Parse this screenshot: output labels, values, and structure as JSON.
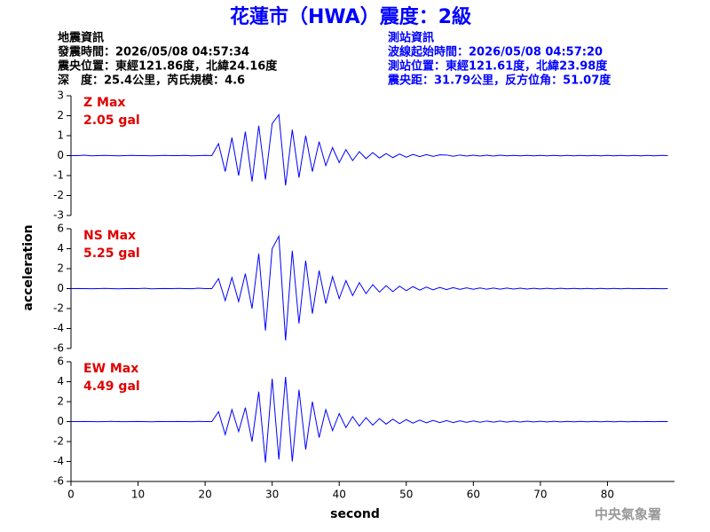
{
  "header": {
    "title": "花蓮市（HWA）震度：2級",
    "left": [
      "地震資訊",
      "發震時間：2026/05/08 04:57:34",
      "震央位置：東經121.86度，北緯24.16度",
      "深　度：25.4公里，芮氏規模：4.6"
    ],
    "right": [
      "測站資訊",
      "波線起始時間：2026/05/08 04:57:20",
      "測站位置：東經121.61度，北緯23.98度",
      "震央距：31.79公里，反方位角：51.07度"
    ]
  },
  "ylabel": "acceleration",
  "footer_mark": "中央氣象署",
  "chart_data": [
    {
      "type": "line",
      "color": "#0000ff",
      "annotations": [
        "Z Max",
        "2.05 gal"
      ],
      "xlim": [
        0,
        90
      ],
      "ylim": [
        -3,
        3
      ],
      "yticks": [
        -3,
        -2,
        -1,
        0,
        1,
        2,
        3
      ],
      "x": [
        0,
        1,
        2,
        3,
        4,
        5,
        6,
        7,
        8,
        9,
        10,
        11,
        12,
        13,
        14,
        15,
        16,
        17,
        18,
        19,
        20,
        21,
        22,
        23,
        24,
        25,
        26,
        27,
        28,
        29,
        30,
        31,
        32,
        33,
        34,
        35,
        36,
        37,
        38,
        39,
        40,
        41,
        42,
        43,
        44,
        45,
        46,
        47,
        48,
        49,
        50,
        51,
        52,
        53,
        54,
        55,
        56,
        57,
        58,
        59,
        60,
        61,
        62,
        63,
        64,
        65,
        66,
        67,
        68,
        69,
        70,
        71,
        72,
        73,
        74,
        75,
        76,
        77,
        78,
        79,
        80,
        81,
        82,
        83,
        84,
        85,
        86,
        87,
        88,
        89
      ],
      "values": [
        0,
        0,
        0.02,
        -0.01,
        0,
        0.01,
        0,
        -0.01,
        0,
        0.01,
        0,
        0,
        -0.01,
        0,
        0.01,
        0,
        0,
        0.01,
        -0.01,
        0,
        0.01,
        0,
        0.6,
        -0.8,
        0.9,
        -1.0,
        1.2,
        -1.3,
        1.5,
        -1.2,
        1.6,
        2.05,
        -1.5,
        1.3,
        -1.1,
        1.0,
        -0.8,
        0.7,
        -0.5,
        0.4,
        -0.35,
        0.3,
        -0.25,
        0.2,
        -0.15,
        0.15,
        -0.12,
        0.1,
        -0.1,
        0.08,
        -0.08,
        0.06,
        -0.05,
        0.05,
        -0.04,
        0.04,
        0.03,
        -0.03,
        0.03,
        -0.02,
        0.02,
        -0.02,
        0.02,
        -0.02,
        0.02,
        -0.01,
        0.01,
        -0.01,
        0.01,
        -0.01,
        0.01,
        -0.01,
        0.01,
        -0.01,
        0.01,
        -0.01,
        0.01,
        -0.01,
        0.01,
        -0.01,
        0.01,
        -0.01,
        0.01,
        -0.01,
        0.01,
        -0.01,
        0.01,
        -0.01,
        0.01,
        0
      ]
    },
    {
      "type": "line",
      "color": "#0000ff",
      "annotations": [
        "NS Max",
        "5.25 gal"
      ],
      "xlim": [
        0,
        90
      ],
      "ylim": [
        -6,
        6
      ],
      "yticks": [
        -6,
        -4,
        -2,
        0,
        2,
        4,
        6
      ],
      "x": [
        0,
        1,
        2,
        3,
        4,
        5,
        6,
        7,
        8,
        9,
        10,
        11,
        12,
        13,
        14,
        15,
        16,
        17,
        18,
        19,
        20,
        21,
        22,
        23,
        24,
        25,
        26,
        27,
        28,
        29,
        30,
        31,
        32,
        33,
        34,
        35,
        36,
        37,
        38,
        39,
        40,
        41,
        42,
        43,
        44,
        45,
        46,
        47,
        48,
        49,
        50,
        51,
        52,
        53,
        54,
        55,
        56,
        57,
        58,
        59,
        60,
        61,
        62,
        63,
        64,
        65,
        66,
        67,
        68,
        69,
        70,
        71,
        72,
        73,
        74,
        75,
        76,
        77,
        78,
        79,
        80,
        81,
        82,
        83,
        84,
        85,
        86,
        87,
        88,
        89
      ],
      "values": [
        0,
        0.01,
        0,
        -0.01,
        0,
        0.02,
        0,
        -0.02,
        0,
        0.01,
        0,
        0.03,
        -0.02,
        0,
        0.01,
        0,
        0.02,
        0,
        -0.01,
        0.05,
        0,
        0,
        1.0,
        -1.2,
        1.1,
        -1.3,
        1.5,
        -2.0,
        3.5,
        -4.2,
        4.0,
        5.25,
        -5.2,
        3.8,
        -3.5,
        2.8,
        -2.5,
        1.8,
        -1.5,
        1.2,
        -1.0,
        0.8,
        -0.7,
        0.6,
        -0.5,
        0.4,
        -0.35,
        0.3,
        -0.3,
        0.25,
        -0.2,
        0.2,
        -0.15,
        0.15,
        -0.12,
        0.12,
        -0.1,
        0.1,
        -0.08,
        0.08,
        -0.07,
        0.06,
        -0.06,
        0.05,
        -0.05,
        0.05,
        -0.04,
        0.04,
        -0.04,
        0.03,
        -0.03,
        0.03,
        -0.03,
        0.03,
        -0.02,
        0.02,
        -0.02,
        0.02,
        -0.02,
        0.02,
        -0.02,
        0.02,
        -0.02,
        0.02,
        -0.01,
        0.01,
        -0.01,
        0.01,
        -0.01,
        0
      ]
    },
    {
      "type": "line",
      "color": "#0000ff",
      "annotations": [
        "EW Max",
        "4.49 gal"
      ],
      "xlim": [
        0,
        90
      ],
      "ylim": [
        -6,
        6
      ],
      "yticks": [
        -6,
        -4,
        -2,
        0,
        2,
        4,
        6
      ],
      "xticks": [
        0,
        10,
        20,
        30,
        40,
        50,
        60,
        70,
        80
      ],
      "xlabel": "second",
      "x": [
        0,
        1,
        2,
        3,
        4,
        5,
        6,
        7,
        8,
        9,
        10,
        11,
        12,
        13,
        14,
        15,
        16,
        17,
        18,
        19,
        20,
        21,
        22,
        23,
        24,
        25,
        26,
        27,
        28,
        29,
        30,
        31,
        32,
        33,
        34,
        35,
        36,
        37,
        38,
        39,
        40,
        41,
        42,
        43,
        44,
        45,
        46,
        47,
        48,
        49,
        50,
        51,
        52,
        53,
        54,
        55,
        56,
        57,
        58,
        59,
        60,
        61,
        62,
        63,
        64,
        65,
        66,
        67,
        68,
        69,
        70,
        71,
        72,
        73,
        74,
        75,
        76,
        77,
        78,
        79,
        80,
        81,
        82,
        83,
        84,
        85,
        86,
        87,
        88,
        89
      ],
      "values": [
        0,
        0,
        0.01,
        0,
        -0.01,
        0,
        0.02,
        0,
        -0.01,
        0,
        0.01,
        0,
        -0.02,
        0.01,
        0,
        0,
        0.01,
        0,
        -0.01,
        0.02,
        0,
        0,
        1.0,
        -1.3,
        1.2,
        -1.0,
        1.4,
        -2.0,
        3.0,
        -4.1,
        4.3,
        -3.8,
        4.49,
        -4.0,
        3.2,
        -2.8,
        2.0,
        -1.6,
        1.2,
        -0.9,
        0.8,
        -0.6,
        0.5,
        -0.45,
        0.4,
        -0.35,
        0.3,
        -0.25,
        0.25,
        -0.2,
        0.2,
        -0.15,
        0.15,
        -0.12,
        0.12,
        -0.1,
        0.1,
        -0.1,
        0.08,
        -0.08,
        0.07,
        -0.06,
        0.06,
        -0.05,
        0.05,
        -0.05,
        0.04,
        -0.04,
        0.04,
        -0.03,
        0.03,
        -0.03,
        0.03,
        -0.03,
        0.02,
        -0.02,
        0.02,
        -0.02,
        0.02,
        -0.02,
        0.02,
        -0.02,
        0.02,
        -0.02,
        0.01,
        -0.01,
        0.01,
        -0.01,
        0.01,
        0
      ]
    }
  ]
}
